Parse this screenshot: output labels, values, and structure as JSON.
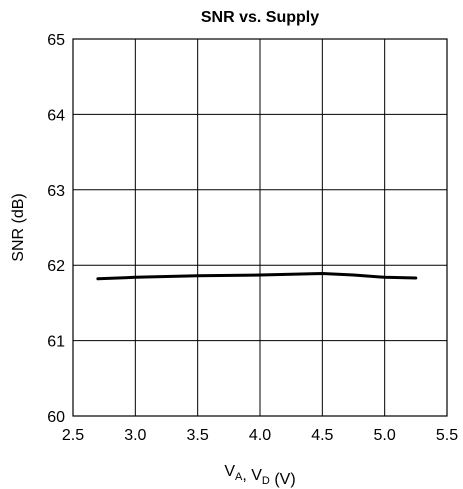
{
  "chart_data": {
    "type": "line",
    "title": "SNR vs. Supply",
    "ylabel": "SNR (dB)",
    "xlabel_parts": [
      {
        "text": "V",
        "sub": false
      },
      {
        "text": "A",
        "sub": true
      },
      {
        "text": ", V",
        "sub": false
      },
      {
        "text": "D",
        "sub": true
      },
      {
        "text": " (V)",
        "sub": false
      }
    ],
    "xlim": [
      2.5,
      5.5
    ],
    "ylim": [
      60,
      65
    ],
    "x_ticks": [
      "2.5",
      "3.0",
      "3.5",
      "4.0",
      "4.5",
      "5.0",
      "5.5"
    ],
    "y_ticks": [
      "60",
      "61",
      "62",
      "63",
      "64",
      "65"
    ],
    "grid": true,
    "series": [
      {
        "color": "#000000",
        "x": [
          2.7,
          3.0,
          3.5,
          4.0,
          4.25,
          4.5,
          4.75,
          5.0,
          5.25
        ],
        "y": [
          61.82,
          61.84,
          61.86,
          61.87,
          61.88,
          61.89,
          61.87,
          61.84,
          61.83
        ]
      }
    ]
  }
}
